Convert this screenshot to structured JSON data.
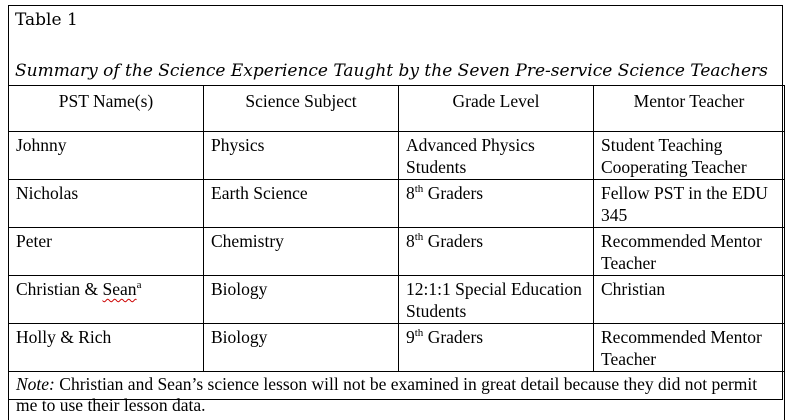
{
  "table_caption": "Table 1",
  "table_title": "Summary of the Science Experience Taught by the Seven Pre-service Science Teachers",
  "columns": [
    "PST Name(s)",
    "Science Subject",
    "Grade Level",
    "Mentor Teacher"
  ],
  "rows": [
    {
      "name": "Johnny",
      "name_sup": "",
      "subject": "Physics",
      "grade_num": "",
      "grade_sup": "",
      "grade_text": "Advanced Physics Students",
      "mentor": "Student Teaching Cooperating Teacher"
    },
    {
      "name": "Nicholas",
      "name_sup": "",
      "subject": "Earth Science",
      "grade_num": "8",
      "grade_sup": "th",
      "grade_text": " Graders",
      "mentor": "Fellow PST in the EDU 345"
    },
    {
      "name": "Peter",
      "name_sup": "",
      "subject": "Chemistry",
      "grade_num": "8",
      "grade_sup": "th",
      "grade_text": " Graders",
      "mentor": "Recommended Mentor Teacher"
    },
    {
      "name": "Christian & ",
      "name_b": "Sean",
      "name_sup": "a",
      "subject": "Biology",
      "grade_num": "",
      "grade_sup": "",
      "grade_text": "12:1:1 Special Education Students",
      "mentor": "Christian"
    },
    {
      "name": "Holly & Rich",
      "name_sup": "",
      "subject": "Biology",
      "grade_num": "9",
      "grade_sup": "th",
      "grade_text": " Graders",
      "mentor": "Recommended Mentor Teacher"
    }
  ],
  "note": {
    "label": "Note:",
    "text": " Christian and Sean’s science lesson will not be examined in great detail because they did not permit me to use their lesson data."
  }
}
